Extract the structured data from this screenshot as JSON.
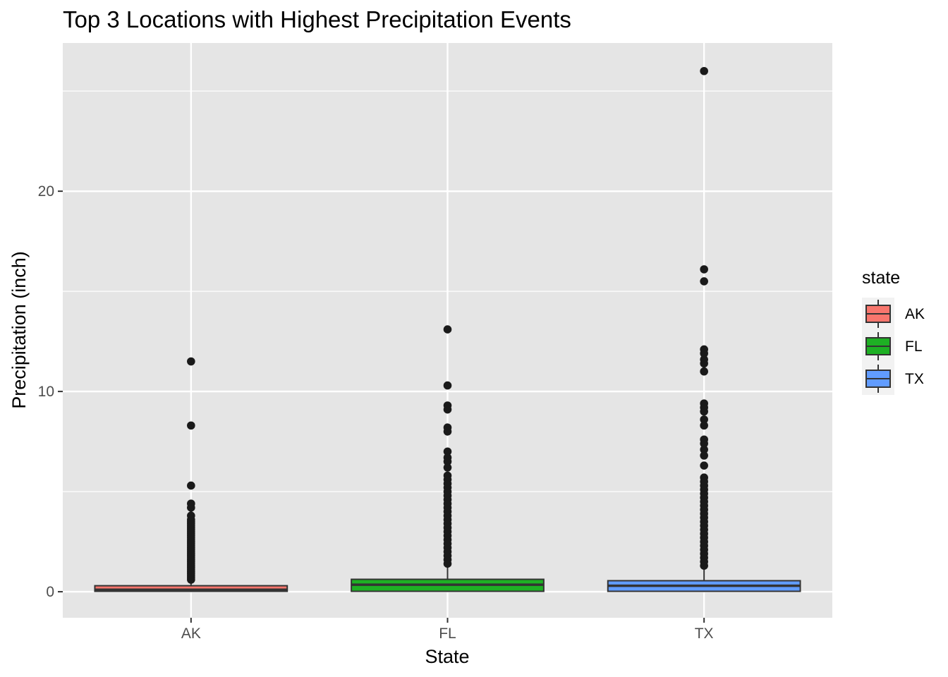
{
  "chart_data": {
    "type": "boxplot",
    "title": "Top 3 Locations with Highest Precipitation Events",
    "xlabel": "State",
    "ylabel": "Precipitation (inch)",
    "categories": [
      "AK",
      "FL",
      "TX"
    ],
    "ylim": [
      -1.3,
      27.4
    ],
    "y_ticks": [
      0,
      10,
      20
    ],
    "y_tick_labels": [
      "0",
      "10",
      "20"
    ],
    "grid": true,
    "legend": {
      "title": "state",
      "position": "right",
      "entries": [
        "AK",
        "FL",
        "TX"
      ]
    },
    "colors": {
      "AK": "#f8766d",
      "FL": "#1eb024",
      "TX": "#619cff",
      "panel": "#e5e5e5",
      "grid": "#ffffff",
      "box_line": "#333333",
      "outlier": "#1a1a1a"
    },
    "series": [
      {
        "name": "AK",
        "min": 0.0,
        "q1": 0.02,
        "median": 0.1,
        "q3": 0.3,
        "max": 0.5,
        "outliers": [
          11.5,
          8.3,
          5.3,
          4.4,
          4.2,
          3.8,
          3.6,
          3.5,
          3.4,
          3.3,
          3.2,
          3.1,
          3.0,
          2.9,
          2.8,
          2.7,
          2.6,
          2.5,
          2.4,
          2.3,
          2.2,
          2.1,
          2.0,
          1.9,
          1.8,
          1.7,
          1.6,
          1.5,
          1.4,
          1.3,
          1.2,
          1.1,
          1.0,
          0.9,
          0.8,
          0.7,
          0.6
        ]
      },
      {
        "name": "FL",
        "min": 0.0,
        "q1": 0.02,
        "median": 0.35,
        "q3": 0.62,
        "max": 1.2,
        "outliers": [
          13.1,
          10.3,
          9.3,
          9.1,
          8.2,
          8.0,
          7.0,
          6.7,
          6.5,
          6.2,
          5.8,
          5.6,
          5.4,
          5.2,
          5.0,
          4.8,
          4.6,
          4.4,
          4.2,
          4.0,
          3.8,
          3.6,
          3.4,
          3.2,
          3.0,
          2.8,
          2.6,
          2.4,
          2.2,
          2.0,
          1.8,
          1.6,
          1.4
        ]
      },
      {
        "name": "TX",
        "min": 0.0,
        "q1": 0.02,
        "median": 0.3,
        "q3": 0.55,
        "max": 1.1,
        "outliers": [
          26.0,
          16.1,
          15.5,
          12.1,
          11.9,
          11.6,
          11.4,
          11.0,
          9.4,
          9.2,
          9.0,
          8.6,
          8.3,
          7.6,
          7.4,
          7.1,
          6.8,
          6.3,
          5.7,
          5.5,
          5.3,
          5.1,
          4.9,
          4.7,
          4.5,
          4.3,
          4.1,
          3.9,
          3.7,
          3.5,
          3.3,
          3.1,
          2.9,
          2.7,
          2.5,
          2.3,
          2.1,
          1.9,
          1.7,
          1.5,
          1.3
        ]
      }
    ]
  }
}
